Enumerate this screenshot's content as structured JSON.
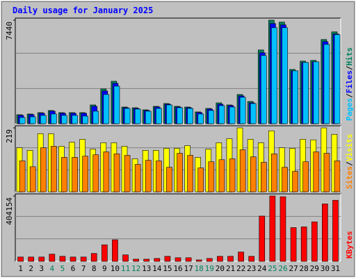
{
  "title": "Daily usage for January 2025",
  "chart_data": [
    {
      "type": "bar",
      "ylim": [
        0,
        7440
      ],
      "yticks": [
        7440
      ],
      "series": [
        {
          "name": "Hits",
          "color": "#00805c",
          "values": [
            650,
            700,
            800,
            950,
            800,
            800,
            800,
            1350,
            2500,
            3050,
            1200,
            1150,
            1000,
            1250,
            1450,
            1250,
            1200,
            850,
            1100,
            1500,
            1350,
            2100,
            1600,
            5300,
            7440,
            7300,
            3900,
            4500,
            4550,
            6050,
            6600
          ]
        },
        {
          "name": "Files",
          "color": "#0000ff",
          "values": [
            600,
            650,
            750,
            900,
            750,
            750,
            750,
            1250,
            2350,
            2900,
            1150,
            1100,
            950,
            1200,
            1400,
            1200,
            1150,
            800,
            1050,
            1400,
            1300,
            2000,
            1500,
            5100,
            7200,
            7100,
            3800,
            4400,
            4450,
            5900,
            6450
          ]
        },
        {
          "name": "Pages",
          "color": "#00c0ff",
          "values": [
            450,
            500,
            600,
            700,
            600,
            600,
            550,
            900,
            2100,
            2700,
            1100,
            1050,
            900,
            1100,
            1350,
            1150,
            1100,
            700,
            950,
            1300,
            1200,
            1900,
            1450,
            4900,
            6900,
            6900,
            3800,
            4400,
            4450,
            5700,
            6400
          ]
        }
      ]
    },
    {
      "type": "bar",
      "ylim": [
        0,
        219
      ],
      "yticks": [
        219
      ],
      "series": [
        {
          "name": "Visits",
          "color": "#ffff00",
          "values": [
            151,
            142,
            199,
            199,
            156,
            170,
            180,
            146,
            168,
            168,
            156,
            113,
            142,
            142,
            149,
            149,
            158,
            118,
            146,
            168,
            182,
            219,
            180,
            168,
            209,
            151,
            149,
            180,
            178,
            219,
            197
          ]
        },
        {
          "name": "Sites",
          "color": "#ff8000",
          "values": [
            106,
            86,
            151,
            156,
            118,
            118,
            122,
            127,
            137,
            130,
            125,
            94,
            108,
            106,
            84,
            132,
            125,
            82,
            103,
            110,
            113,
            144,
            120,
            101,
            130,
            84,
            70,
            103,
            137,
            132,
            106
          ]
        }
      ]
    },
    {
      "type": "bar",
      "ylim": [
        0,
        404154
      ],
      "yticks": [
        404154
      ],
      "categories": [
        "1",
        "2",
        "3",
        "4",
        "5",
        "6",
        "7",
        "8",
        "9",
        "10",
        "11",
        "12",
        "13",
        "14",
        "15",
        "16",
        "17",
        "18",
        "19",
        "20",
        "21",
        "22",
        "23",
        "24",
        "25",
        "26",
        "27",
        "28",
        "29",
        "30",
        "31"
      ],
      "category_colors": [
        "#000000",
        "#000000",
        "#000000",
        "#00805c",
        "#00805c",
        "#000000",
        "#000000",
        "#000000",
        "#000000",
        "#000000",
        "#00805c",
        "#00805c",
        "#000000",
        "#000000",
        "#000000",
        "#000000",
        "#000000",
        "#00805c",
        "#00805c",
        "#000000",
        "#000000",
        "#000000",
        "#000000",
        "#000000",
        "#00805c",
        "#00805c",
        "#000000",
        "#000000",
        "#000000",
        "#000000",
        "#000000"
      ],
      "series": [
        {
          "name": "KBytes",
          "color": "#ff0000",
          "values": [
            26646,
            26646,
            26646,
            44410,
            31087,
            26646,
            26646,
            48851,
            102143,
            133230,
            39969,
            13323,
            13323,
            17764,
            31087,
            22205,
            22205,
            8882,
            17764,
            31087,
            31087,
            57733,
            31087,
            279783,
            404154,
            399690,
            208727,
            213168,
            244255,
            355280,
            377485
          ]
        }
      ]
    }
  ]
}
